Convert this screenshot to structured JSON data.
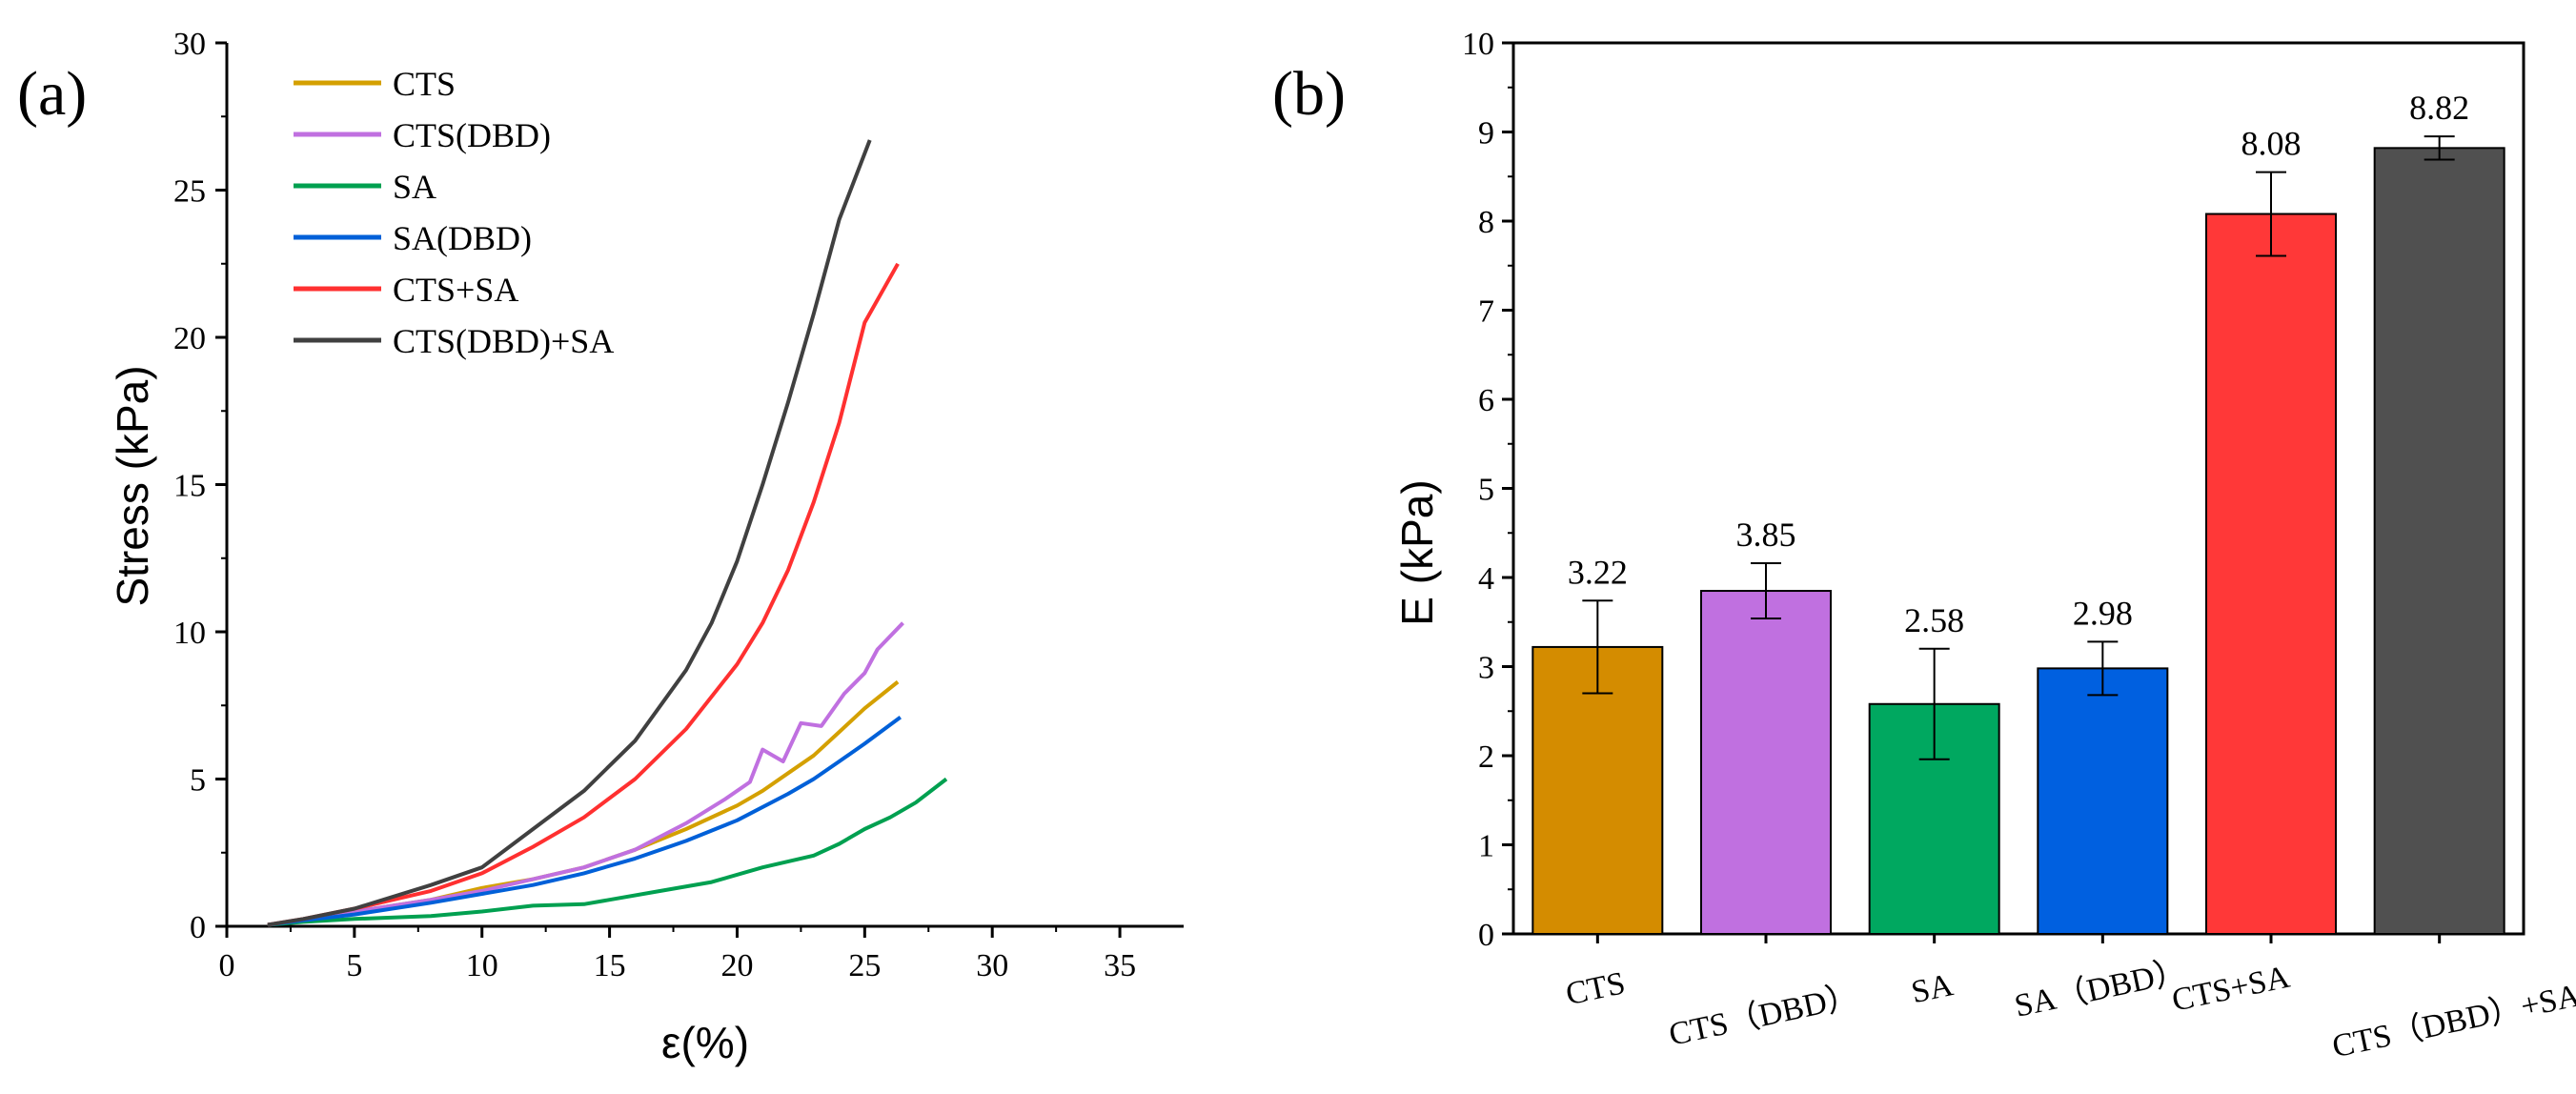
{
  "chart_data": [
    {
      "type": "line",
      "panel_label": "(a)",
      "title": "",
      "xlabel": "ε(%)",
      "ylabel": "Stress (kPa)",
      "xlim": [
        0,
        37.5
      ],
      "ylim": [
        0,
        30
      ],
      "xticks": [
        0,
        5,
        10,
        15,
        20,
        25,
        30,
        35
      ],
      "yticks": [
        0,
        5,
        10,
        15,
        20,
        25,
        30
      ],
      "grid": false,
      "legend_position": "top-left",
      "series": [
        {
          "name": "CTS",
          "color": "#d4a000",
          "x": [
            1.6,
            3,
            5,
            8,
            10,
            12,
            14,
            16,
            18,
            20,
            21,
            22,
            23,
            24,
            25,
            26.3
          ],
          "y": [
            0.05,
            0.2,
            0.5,
            0.9,
            1.3,
            1.6,
            2.0,
            2.6,
            3.3,
            4.1,
            4.6,
            5.2,
            5.8,
            6.6,
            7.4,
            8.3
          ]
        },
        {
          "name": "CTS(DBD)",
          "color": "#c070e0",
          "x": [
            1.6,
            3,
            5,
            8,
            10,
            12,
            14,
            16,
            18,
            19.5,
            20.5,
            21,
            21.8,
            22.5,
            23.3,
            24.2,
            25,
            25.5,
            26.5
          ],
          "y": [
            0.05,
            0.2,
            0.5,
            0.9,
            1.2,
            1.6,
            2.0,
            2.6,
            3.5,
            4.3,
            4.9,
            6.0,
            5.6,
            6.9,
            6.8,
            7.9,
            8.6,
            9.4,
            10.3
          ]
        },
        {
          "name": "SA",
          "color": "#00a050",
          "x": [
            1.6,
            3,
            5,
            8,
            10,
            12,
            14,
            15,
            17,
            19,
            21,
            23,
            24,
            25,
            26,
            27,
            28.2
          ],
          "y": [
            0.05,
            0.15,
            0.25,
            0.35,
            0.5,
            0.7,
            0.75,
            0.9,
            1.2,
            1.5,
            2.0,
            2.4,
            2.8,
            3.3,
            3.7,
            4.2,
            5.0
          ]
        },
        {
          "name": "SA(DBD)",
          "color": "#0060d8",
          "x": [
            1.6,
            3,
            5,
            8,
            10,
            12,
            14,
            16,
            18,
            20,
            22,
            23,
            24,
            25,
            26.4
          ],
          "y": [
            0.05,
            0.2,
            0.4,
            0.8,
            1.1,
            1.4,
            1.8,
            2.3,
            2.9,
            3.6,
            4.5,
            5.0,
            5.6,
            6.2,
            7.1
          ]
        },
        {
          "name": "CTS+SA",
          "color": "#ff3030",
          "x": [
            1.6,
            3,
            5,
            8,
            10,
            12,
            14,
            16,
            18,
            20,
            21,
            22,
            23,
            24,
            25,
            26.3
          ],
          "y": [
            0.05,
            0.25,
            0.6,
            1.2,
            1.8,
            2.7,
            3.7,
            5.0,
            6.7,
            8.9,
            10.3,
            12.1,
            14.4,
            17.1,
            20.5,
            22.5
          ]
        },
        {
          "name": "CTS(DBD)+SA",
          "color": "#404040",
          "x": [
            1.6,
            3,
            5,
            8,
            10,
            12,
            14,
            16,
            18,
            19,
            20,
            21,
            22,
            23,
            24,
            25.2
          ],
          "y": [
            0.05,
            0.25,
            0.6,
            1.4,
            2.0,
            3.3,
            4.6,
            6.3,
            8.7,
            10.3,
            12.4,
            15.0,
            17.8,
            20.8,
            24.0,
            26.7
          ]
        }
      ]
    },
    {
      "type": "bar",
      "panel_label": "(b)",
      "title": "",
      "xlabel": "",
      "ylabel": "E (kPa)",
      "ylim": [
        0,
        10
      ],
      "yticks": [
        0,
        1,
        2,
        3,
        4,
        5,
        6,
        7,
        8,
        9,
        10
      ],
      "grid": false,
      "categories": [
        "CTS",
        "CTS（DBD）",
        "SA",
        "SA（DBD）",
        "CTS+SA",
        "CTS（DBD）+SA"
      ],
      "values": [
        3.22,
        3.85,
        2.58,
        2.98,
        8.08,
        8.82
      ],
      "value_labels": [
        "3.22",
        "3.85",
        "2.58",
        "2.98",
        "8.08",
        "8.82"
      ],
      "errors": [
        0.52,
        0.31,
        0.62,
        0.3,
        0.47,
        0.13
      ],
      "colors": [
        "#d48c00",
        "#c070e0",
        "#00a860",
        "#0060e0",
        "#ff3838",
        "#505050"
      ]
    }
  ]
}
